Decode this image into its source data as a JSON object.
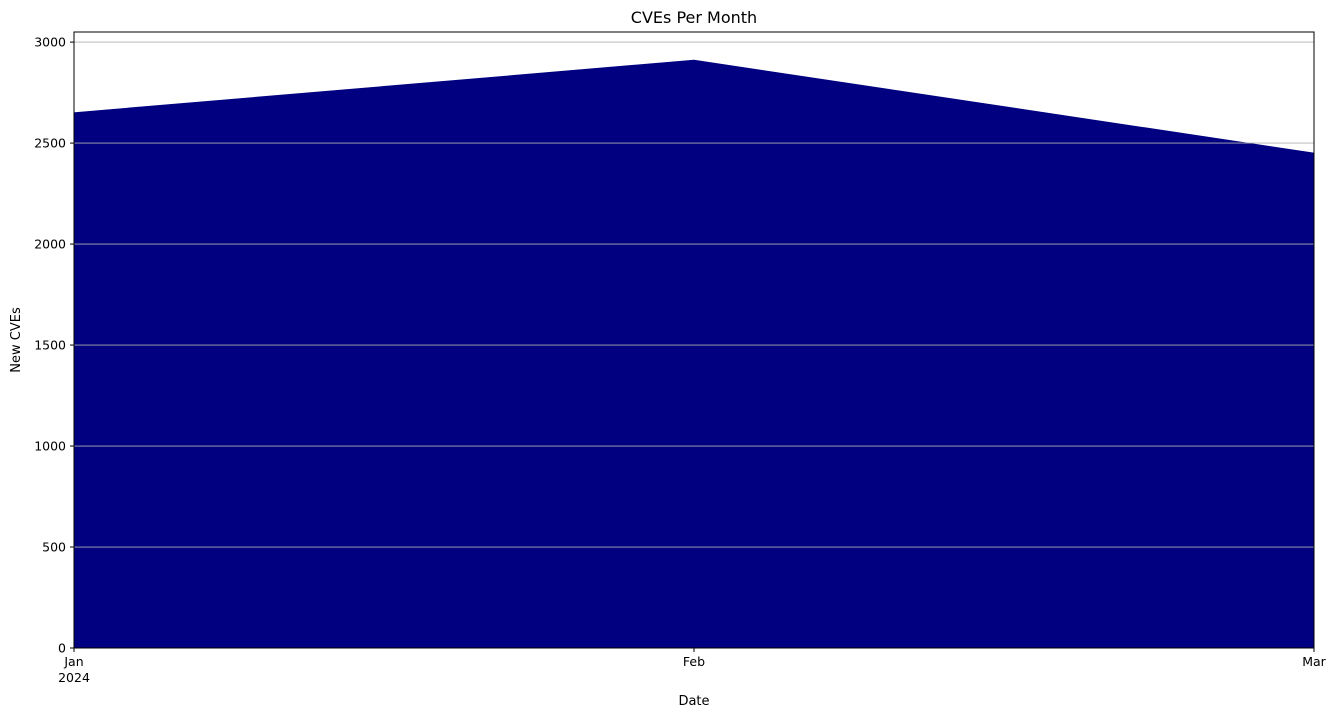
{
  "chart_data": {
    "type": "area",
    "title": "CVEs Per Month",
    "xlabel": "Date",
    "ylabel": "New CVEs",
    "x": [
      "2024-01",
      "2024-02",
      "2024-03"
    ],
    "x_tick_labels": [
      "Jan",
      "Feb",
      "Mar"
    ],
    "x_tick_sublabels": [
      "2024",
      "",
      ""
    ],
    "series": [
      {
        "values": [
          2650,
          2910,
          2450
        ],
        "color": "#000080"
      }
    ],
    "ylim": [
      0,
      3050
    ],
    "y_ticks": [
      0,
      500,
      1000,
      1500,
      2000,
      2500,
      3000
    ],
    "grid": true,
    "grid_axis": "y",
    "legend": false
  }
}
